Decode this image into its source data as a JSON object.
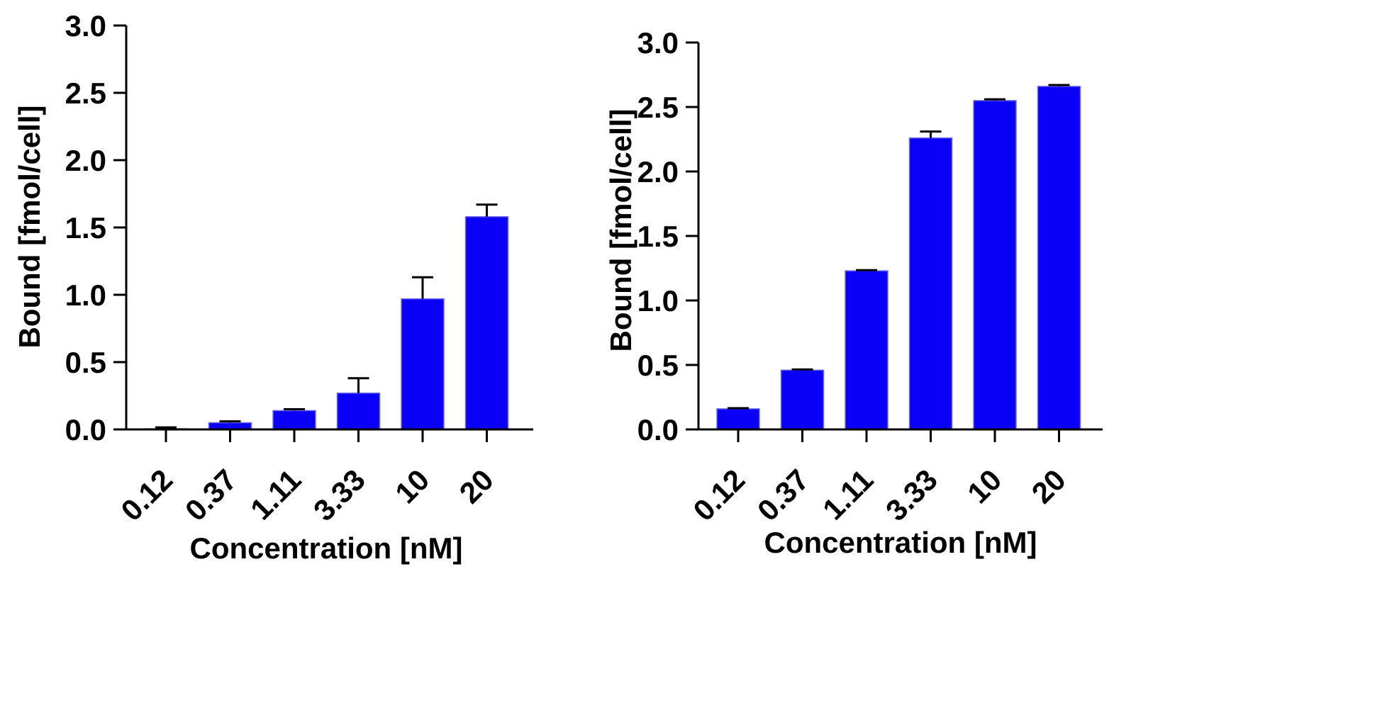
{
  "colors": {
    "bar_fill": "#0a00f5",
    "bar_stroke": "#6f6cf0",
    "axis": "#000000",
    "background": "#ffffff"
  },
  "chart_data": [
    {
      "type": "bar",
      "title": "",
      "xlabel": "Concentration [nM]",
      "ylabel": "Bound [fmol/cell]",
      "categories": [
        "0.12",
        "0.37",
        "1.11",
        "3.33",
        "10",
        "20"
      ],
      "values": [
        0.005,
        0.05,
        0.14,
        0.27,
        0.97,
        1.58
      ],
      "error": [
        0.01,
        0.01,
        0.01,
        0.11,
        0.16,
        0.09
      ],
      "ylim": [
        0,
        3.0
      ],
      "yticks": [
        "0.0",
        "0.5",
        "1.0",
        "1.5",
        "2.0",
        "2.5",
        "3.0"
      ],
      "grid": false
    },
    {
      "type": "bar",
      "title": "",
      "xlabel": "Concentration [nM]",
      "ylabel": "Bound [fmol/cell]",
      "categories": [
        "0.12",
        "0.37",
        "1.11",
        "3.33",
        "10",
        "20"
      ],
      "values": [
        0.16,
        0.46,
        1.23,
        2.26,
        2.55,
        2.66
      ],
      "error": [
        0.005,
        0.005,
        0.005,
        0.05,
        0.01,
        0.01
      ],
      "ylim": [
        0,
        3.0
      ],
      "yticks": [
        "0.0",
        "0.5",
        "1.0",
        "1.5",
        "2.0",
        "2.5",
        "3.0"
      ],
      "grid": false
    }
  ]
}
